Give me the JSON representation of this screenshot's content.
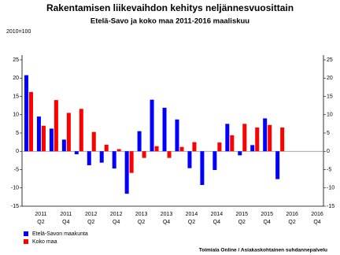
{
  "chart_data": {
    "type": "bar",
    "title": "Rakentamisen liikevaihdon kehitys neljännesvuosittain",
    "subtitle": "Etelä-Savo ja koko maa 2011-2016 maaliskuu",
    "y_unit_label": "2010=100",
    "source": "Toimiala Online / Asiakaskohtainen suhdannepalvelu",
    "categories": [
      null,
      [
        "2011",
        "Q2"
      ],
      null,
      [
        "2011",
        "Q4"
      ],
      null,
      [
        "2012",
        "Q2"
      ],
      null,
      [
        "2012",
        "Q4"
      ],
      null,
      [
        "2013",
        "Q2"
      ],
      null,
      [
        "2013",
        "Q4"
      ],
      null,
      [
        "2014",
        "Q2"
      ],
      null,
      [
        "2014",
        "Q4"
      ],
      null,
      [
        "2015",
        "Q2"
      ],
      null,
      [
        "2015",
        "Q4"
      ],
      null,
      [
        "2016",
        "Q2"
      ],
      null,
      [
        "2016",
        "Q4"
      ]
    ],
    "series": [
      {
        "name": "Etelä-Savon maakunta",
        "color": "#0000ff",
        "values": [
          20.8,
          9.5,
          6.2,
          3.2,
          -0.8,
          -3.8,
          -3.1,
          -4.7,
          -11.6,
          5.5,
          14.1,
          11.9,
          8.7,
          -4.6,
          -9.2,
          -5.1,
          7.5,
          -1.1,
          1.7,
          9.0,
          -7.6,
          null,
          null,
          null
        ]
      },
      {
        "name": "Koko maa",
        "color": "#ff0000",
        "values": [
          16.2,
          7.0,
          14.0,
          10.5,
          11.6,
          5.3,
          1.8,
          0.6,
          -5.9,
          -1.8,
          1.4,
          -1.8,
          1.2,
          2.5,
          null,
          2.4,
          4.4,
          7.5,
          6.5,
          7.2,
          6.5,
          null,
          null,
          null
        ]
      }
    ],
    "ylim": [
      -15,
      25
    ],
    "yticks": [
      -15,
      -10,
      -5,
      0,
      5,
      10,
      15,
      20,
      25
    ],
    "grid": false,
    "legend": "bottom-left"
  }
}
